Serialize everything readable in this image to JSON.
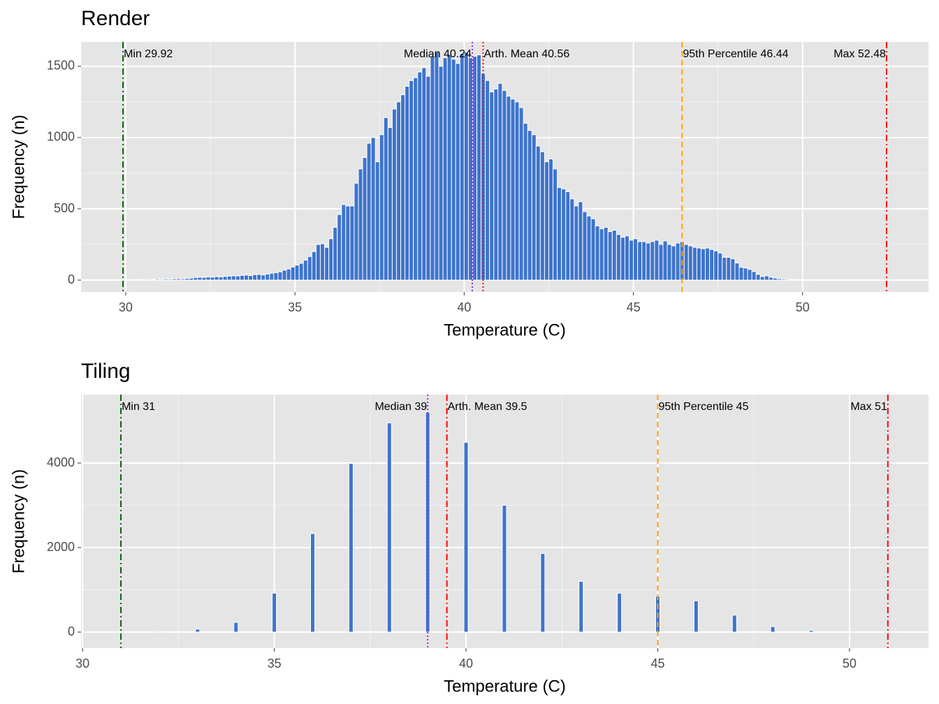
{
  "chart_data": [
    {
      "type": "histogram",
      "title": "Render",
      "x_label": "Temperature (C)",
      "y_label": "Frequency (n)",
      "color": "#3e74cc",
      "edgecolor": "#ffffff",
      "grid": true,
      "minor_grid": true,
      "xlim": [
        28.68,
        53.72
      ],
      "ylim": [
        -83,
        1671
      ],
      "xticks": [
        30,
        35,
        40,
        45,
        50
      ],
      "yticks": [
        0,
        500,
        1000,
        1500
      ],
      "bins": [
        29.875,
        30,
        30.125,
        30.25,
        30.375,
        30.5,
        30.625,
        30.75,
        30.875,
        31,
        31.125,
        31.25,
        31.375,
        31.5,
        31.625,
        31.75,
        31.875,
        32,
        32.125,
        32.25,
        32.375,
        32.5,
        32.625,
        32.75,
        32.875,
        33,
        33.125,
        33.25,
        33.375,
        33.5,
        33.625,
        33.75,
        33.875,
        34,
        34.125,
        34.25,
        34.375,
        34.5,
        34.625,
        34.75,
        34.875,
        35,
        35.125,
        35.25,
        35.375,
        35.5,
        35.625,
        35.75,
        35.875,
        36,
        36.125,
        36.25,
        36.375,
        36.5,
        36.625,
        36.75,
        36.875,
        37,
        37.125,
        37.25,
        37.375,
        37.5,
        37.625,
        37.75,
        37.875,
        38,
        38.125,
        38.25,
        38.375,
        38.5,
        38.625,
        38.75,
        38.875,
        39,
        39.125,
        39.25,
        39.375,
        39.5,
        39.625,
        39.75,
        39.875,
        40,
        40.125,
        40.25,
        40.375,
        40.5,
        40.625,
        40.75,
        40.875,
        41,
        41.125,
        41.25,
        41.375,
        41.5,
        41.625,
        41.75,
        41.875,
        42,
        42.125,
        42.25,
        42.375,
        42.5,
        42.625,
        42.75,
        42.875,
        43,
        43.125,
        43.25,
        43.375,
        43.5,
        43.625,
        43.75,
        43.875,
        44,
        44.125,
        44.25,
        44.375,
        44.5,
        44.625,
        44.75,
        44.875,
        45,
        45.125,
        45.25,
        45.375,
        45.5,
        45.625,
        45.75,
        45.875,
        46,
        46.125,
        46.25,
        46.375,
        46.5,
        46.625,
        46.75,
        46.875,
        47,
        47.125,
        47.25,
        47.375,
        47.5,
        47.625,
        47.75,
        47.875,
        48,
        48.125,
        48.25,
        48.375,
        48.5,
        48.625,
        48.75,
        48.875,
        49,
        49.125,
        49.25,
        49.375,
        49.5,
        49.625,
        49.75,
        49.875,
        50,
        50.125,
        50.25,
        50.375,
        50.5,
        50.625,
        50.75,
        50.875,
        51,
        51.125,
        51.25,
        51.375,
        51.5,
        51.625,
        51.75,
        51.875,
        52,
        52.125,
        52.25,
        52.375,
        52.5
      ],
      "values": [
        2,
        3,
        4,
        3,
        5,
        4,
        6,
        5,
        7,
        6,
        8,
        7,
        9,
        10,
        9,
        12,
        14,
        18,
        20,
        19,
        22,
        21,
        24,
        23,
        26,
        28,
        30,
        29,
        33,
        35,
        32,
        38,
        40,
        36,
        42,
        48,
        52,
        58,
        70,
        78,
        92,
        105,
        118,
        140,
        165,
        200,
        250,
        255,
        230,
        290,
        370,
        460,
        530,
        520,
        520,
        680,
        780,
        860,
        960,
        1000,
        830,
        1020,
        1140,
        1070,
        1200,
        1250,
        1300,
        1360,
        1400,
        1420,
        1460,
        1490,
        1430,
        1570,
        1600,
        1500,
        1560,
        1580,
        1550,
        1520,
        1590,
        1600,
        1560,
        1570,
        1580,
        1450,
        1400,
        1320,
        1340,
        1380,
        1330,
        1290,
        1270,
        1250,
        1210,
        1100,
        1050,
        1020,
        940,
        900,
        830,
        850,
        780,
        650,
        640,
        620,
        570,
        520,
        550,
        480,
        450,
        430,
        380,
        360,
        370,
        340,
        350,
        320,
        300,
        310,
        280,
        290,
        270,
        270,
        260,
        270,
        280,
        250,
        275,
        250,
        240,
        260,
        270,
        250,
        240,
        230,
        225,
        220,
        225,
        215,
        205,
        190,
        160,
        160,
        150,
        120,
        90,
        85,
        75,
        60,
        40,
        25,
        30,
        20,
        15,
        10,
        8,
        6,
        5,
        4,
        3,
        3,
        4,
        3,
        2,
        3,
        2,
        2,
        3,
        2,
        2,
        1,
        2,
        1,
        2,
        1,
        1,
        2,
        1,
        1,
        1
      ],
      "annotations": [
        {
          "label": "Min 29.92",
          "value": 29.92,
          "color": "#006400",
          "style": "dotdash",
          "anchor": "start"
        },
        {
          "label": "Median 40.24",
          "value": 40.24,
          "color": "#a020f0",
          "style": "dotted",
          "anchor": "end"
        },
        {
          "label": "Arth. Mean 40.56",
          "value": 40.56,
          "color": "#ff0000",
          "style": "dotted",
          "anchor": "start"
        },
        {
          "label": "95th Percentile 46.44",
          "value": 46.44,
          "color": "#ffa500",
          "style": "dashed",
          "anchor": "start"
        },
        {
          "label": "Max 52.48",
          "value": 52.48,
          "color": "#ff0000",
          "style": "dotdash",
          "anchor": "end"
        }
      ]
    },
    {
      "type": "bar",
      "title": "Tiling",
      "x_label": "Temperature (C)",
      "y_label": "Frequency (n)",
      "color": "#3e74cc",
      "edgecolor": "#ffffff",
      "grid": true,
      "minor_grid": true,
      "xlim": [
        29.96,
        52.06
      ],
      "ylim": [
        -380,
        5620
      ],
      "xticks": [
        30,
        35,
        40,
        45,
        50
      ],
      "yticks": [
        0,
        2000,
        4000
      ],
      "x": [
        32,
        33,
        34,
        35,
        36,
        37,
        38,
        39,
        40,
        41,
        42,
        43,
        44,
        45,
        46,
        47,
        48,
        49
      ],
      "values": [
        20,
        70,
        230,
        920,
        2330,
        3990,
        4950,
        5200,
        4490,
        3000,
        1860,
        1200,
        920,
        850,
        740,
        400,
        130,
        40
      ],
      "annotations": [
        {
          "label": "Min 31",
          "value": 31,
          "color": "#006400",
          "style": "dotdash",
          "anchor": "start"
        },
        {
          "label": "Median 39",
          "value": 39,
          "color": "#a020f0",
          "style": "dotted",
          "anchor": "end"
        },
        {
          "label": "Arth. Mean 39.5",
          "value": 39.5,
          "color": "#ff0000",
          "style": "dotdash",
          "anchor": "start"
        },
        {
          "label": "95th Percentile 45",
          "value": 45,
          "color": "#ffa500",
          "style": "dashed",
          "anchor": "start"
        },
        {
          "label": "Max 51",
          "value": 51,
          "color": "#ff0000",
          "style": "dotdash",
          "anchor": "end"
        }
      ]
    }
  ]
}
